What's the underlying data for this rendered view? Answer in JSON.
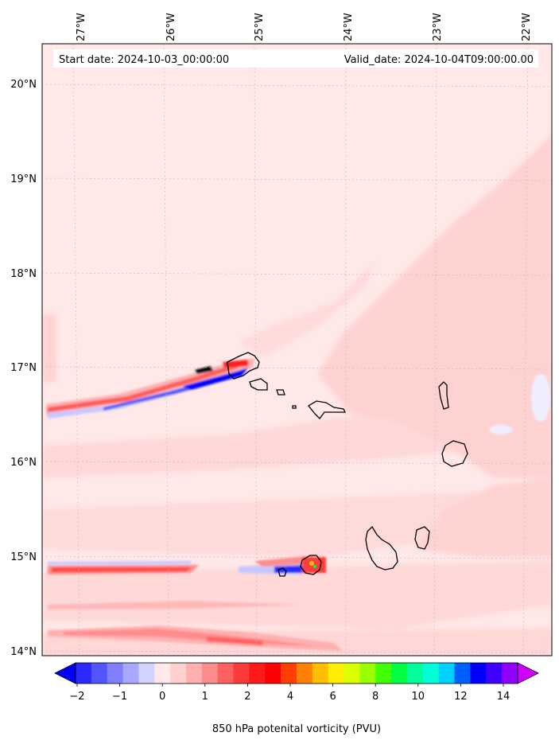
{
  "header": {
    "start_date": "Start date: 2024-10-03_00:00:00",
    "valid_date": "Valid_date: 2024-10-04T09:00:00.00"
  },
  "axes": {
    "lon_labels": [
      "27°W",
      "26°W",
      "25°W",
      "24°W",
      "23°W",
      "22°W"
    ],
    "lat_labels": [
      "20°N",
      "19°N",
      "18°N",
      "17°N",
      "16°N",
      "15°N",
      "14°N"
    ]
  },
  "colorbar": {
    "label": "850 hPa potenital vorticity (PVU)",
    "tick_labels": [
      "−2",
      "−1",
      "0",
      "1",
      "2",
      "4",
      "6",
      "8",
      "10",
      "12",
      "14"
    ],
    "colors": [
      "#0000ff",
      "#2a2aff",
      "#5555ff",
      "#7f7fff",
      "#a8a8ff",
      "#d3d3ff",
      "#ffe8e8",
      "#ffd0d0",
      "#ffb0b0",
      "#ff8c8c",
      "#ff6060",
      "#ff3a3a",
      "#ff1a1a",
      "#ff0000",
      "#ff4000",
      "#ff8000",
      "#ffbf00",
      "#ffee00",
      "#d9ff00",
      "#99ff00",
      "#40ff00",
      "#00ff40",
      "#00ff99",
      "#00ffd9",
      "#00d0ff",
      "#0060ff",
      "#0000ff",
      "#4000ff",
      "#9000ff",
      "#d000ff"
    ]
  },
  "chart_data": {
    "type": "heatmap",
    "variable": "850 hPa potenital vorticity (PVU)",
    "lon_range": [
      -27.4,
      -21.8
    ],
    "lat_range": [
      13.95,
      20.4
    ],
    "colorbar_ticks": [
      -2,
      -1,
      0,
      1,
      2,
      4,
      6,
      8,
      10,
      12,
      14
    ],
    "background_value": 0.1,
    "features": [
      {
        "name": "northern red streak",
        "lon_start": -27.3,
        "lat_start": 16.58,
        "lon_end": -25.2,
        "lat_end": 17.05,
        "value": 1.5
      },
      {
        "name": "northern blue streak",
        "lon_start": -27.3,
        "lat_start": 16.47,
        "lon_end": -25.2,
        "lat_end": 16.95,
        "value": -1.0
      },
      {
        "name": "southern red band",
        "lon_start": -27.3,
        "lat_start": 14.86,
        "lon_end": -24.6,
        "lat_end": 14.86,
        "value": 1.2
      },
      {
        "name": "southern blue band",
        "lon_start": -27.3,
        "lat_start": 14.92,
        "lon_end": -24.2,
        "lat_end": 14.84,
        "value": -0.8
      },
      {
        "name": "lower red band",
        "lon_start": -27.2,
        "lat_start": 14.1,
        "lon_end": -24.2,
        "lat_end": 14.1,
        "value": 1.0
      }
    ]
  }
}
